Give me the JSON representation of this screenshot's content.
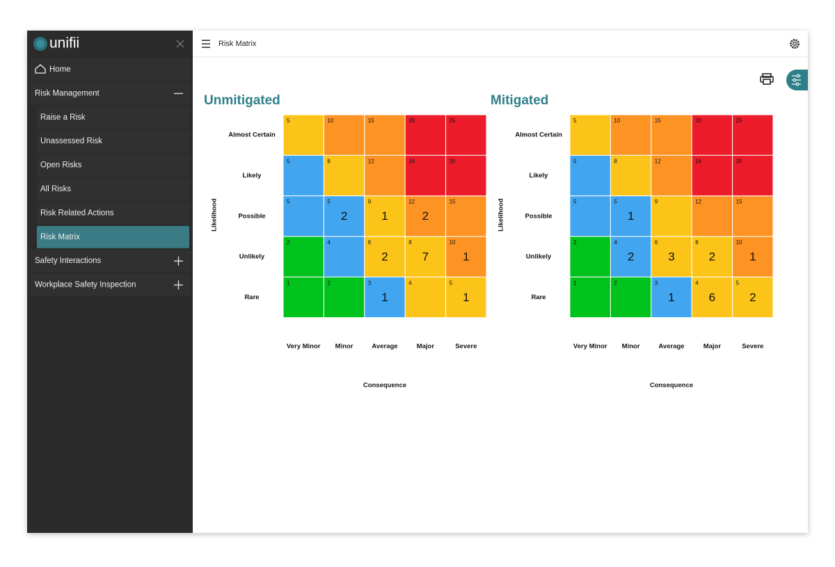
{
  "sidebar": {
    "logo": "unifii",
    "items": [
      {
        "label": "Home"
      },
      {
        "label": "Risk Management",
        "children": [
          {
            "label": "Raise a Risk"
          },
          {
            "label": "Unassessed Risk"
          },
          {
            "label": "Open Risks"
          },
          {
            "label": "All Risks"
          },
          {
            "label": "Risk Related Actions"
          },
          {
            "label": "Risk Matrix",
            "active": true
          }
        ]
      },
      {
        "label": "Safety Interactions"
      },
      {
        "label": "Workplace Safety Inspection"
      }
    ]
  },
  "header": {
    "title": "Risk Matrix"
  },
  "matrices": [
    {
      "title": "Unmitigated",
      "y_axis_label": "Likelihood",
      "x_axis_label": "Consequence",
      "rows": [
        "Almost Certain",
        "Likely",
        "Possible",
        "Unlikely",
        "Rare"
      ],
      "columns": [
        "Very Minor",
        "Minor",
        "Average",
        "Major",
        "Severe"
      ],
      "cells": [
        [
          {
            "score": 5,
            "color": "#fcc419"
          },
          {
            "score": 10,
            "color": "#fd9323"
          },
          {
            "score": 15,
            "color": "#fd9323"
          },
          {
            "score": 20,
            "color": "#ec1c2a"
          },
          {
            "score": 25,
            "color": "#ec1c2a"
          }
        ],
        [
          {
            "score": 5,
            "color": "#42a5f0"
          },
          {
            "score": 8,
            "color": "#fcc419"
          },
          {
            "score": 12,
            "color": "#fd9323"
          },
          {
            "score": 16,
            "color": "#ec1c2a"
          },
          {
            "score": 20,
            "color": "#ec1c2a"
          }
        ],
        [
          {
            "score": 5,
            "color": "#42a5f0"
          },
          {
            "score": 5,
            "count": 2,
            "color": "#42a5f0"
          },
          {
            "score": 9,
            "count": 1,
            "color": "#fcc419"
          },
          {
            "score": 12,
            "count": 2,
            "color": "#fd9323"
          },
          {
            "score": 15,
            "color": "#fd9323"
          }
        ],
        [
          {
            "score": 2,
            "color": "#00c21c"
          },
          {
            "score": 4,
            "color": "#42a5f0"
          },
          {
            "score": 6,
            "count": 2,
            "color": "#fcc419"
          },
          {
            "score": 8,
            "count": 7,
            "color": "#fcc419"
          },
          {
            "score": 10,
            "count": 1,
            "color": "#fd9323"
          }
        ],
        [
          {
            "score": 1,
            "color": "#00c21c"
          },
          {
            "score": 2,
            "color": "#00c21c"
          },
          {
            "score": 3,
            "count": 1,
            "color": "#42a5f0"
          },
          {
            "score": 4,
            "color": "#fcc419"
          },
          {
            "score": 5,
            "count": 1,
            "color": "#fcc419"
          }
        ]
      ]
    },
    {
      "title": "Mitigated",
      "y_axis_label": "Likelihood",
      "x_axis_label": "Consequence",
      "rows": [
        "Almost Certain",
        "Likely",
        "Possible",
        "Unlikely",
        "Rare"
      ],
      "columns": [
        "Very Minor",
        "Minor",
        "Average",
        "Major",
        "Severe"
      ],
      "cells": [
        [
          {
            "score": 5,
            "color": "#fcc419"
          },
          {
            "score": 10,
            "color": "#fd9323"
          },
          {
            "score": 15,
            "color": "#fd9323"
          },
          {
            "score": 20,
            "color": "#ec1c2a"
          },
          {
            "score": 25,
            "color": "#ec1c2a"
          }
        ],
        [
          {
            "score": 5,
            "color": "#42a5f0"
          },
          {
            "score": 8,
            "color": "#fcc419"
          },
          {
            "score": 12,
            "color": "#fd9323"
          },
          {
            "score": 16,
            "color": "#ec1c2a"
          },
          {
            "score": 20,
            "color": "#ec1c2a"
          }
        ],
        [
          {
            "score": 5,
            "color": "#42a5f0"
          },
          {
            "score": 5,
            "count": 1,
            "color": "#42a5f0"
          },
          {
            "score": 9,
            "color": "#fcc419"
          },
          {
            "score": 12,
            "color": "#fd9323"
          },
          {
            "score": 15,
            "color": "#fd9323"
          }
        ],
        [
          {
            "score": 2,
            "color": "#00c21c"
          },
          {
            "score": 4,
            "count": 2,
            "color": "#42a5f0"
          },
          {
            "score": 6,
            "count": 3,
            "color": "#fcc419"
          },
          {
            "score": 8,
            "count": 2,
            "color": "#fcc419"
          },
          {
            "score": 10,
            "count": 1,
            "color": "#fd9323"
          }
        ],
        [
          {
            "score": 1,
            "color": "#00c21c"
          },
          {
            "score": 2,
            "color": "#00c21c"
          },
          {
            "score": 3,
            "count": 1,
            "color": "#42a5f0"
          },
          {
            "score": 4,
            "count": 6,
            "color": "#fcc419"
          },
          {
            "score": 5,
            "count": 2,
            "color": "#fcc419"
          }
        ]
      ]
    }
  ]
}
